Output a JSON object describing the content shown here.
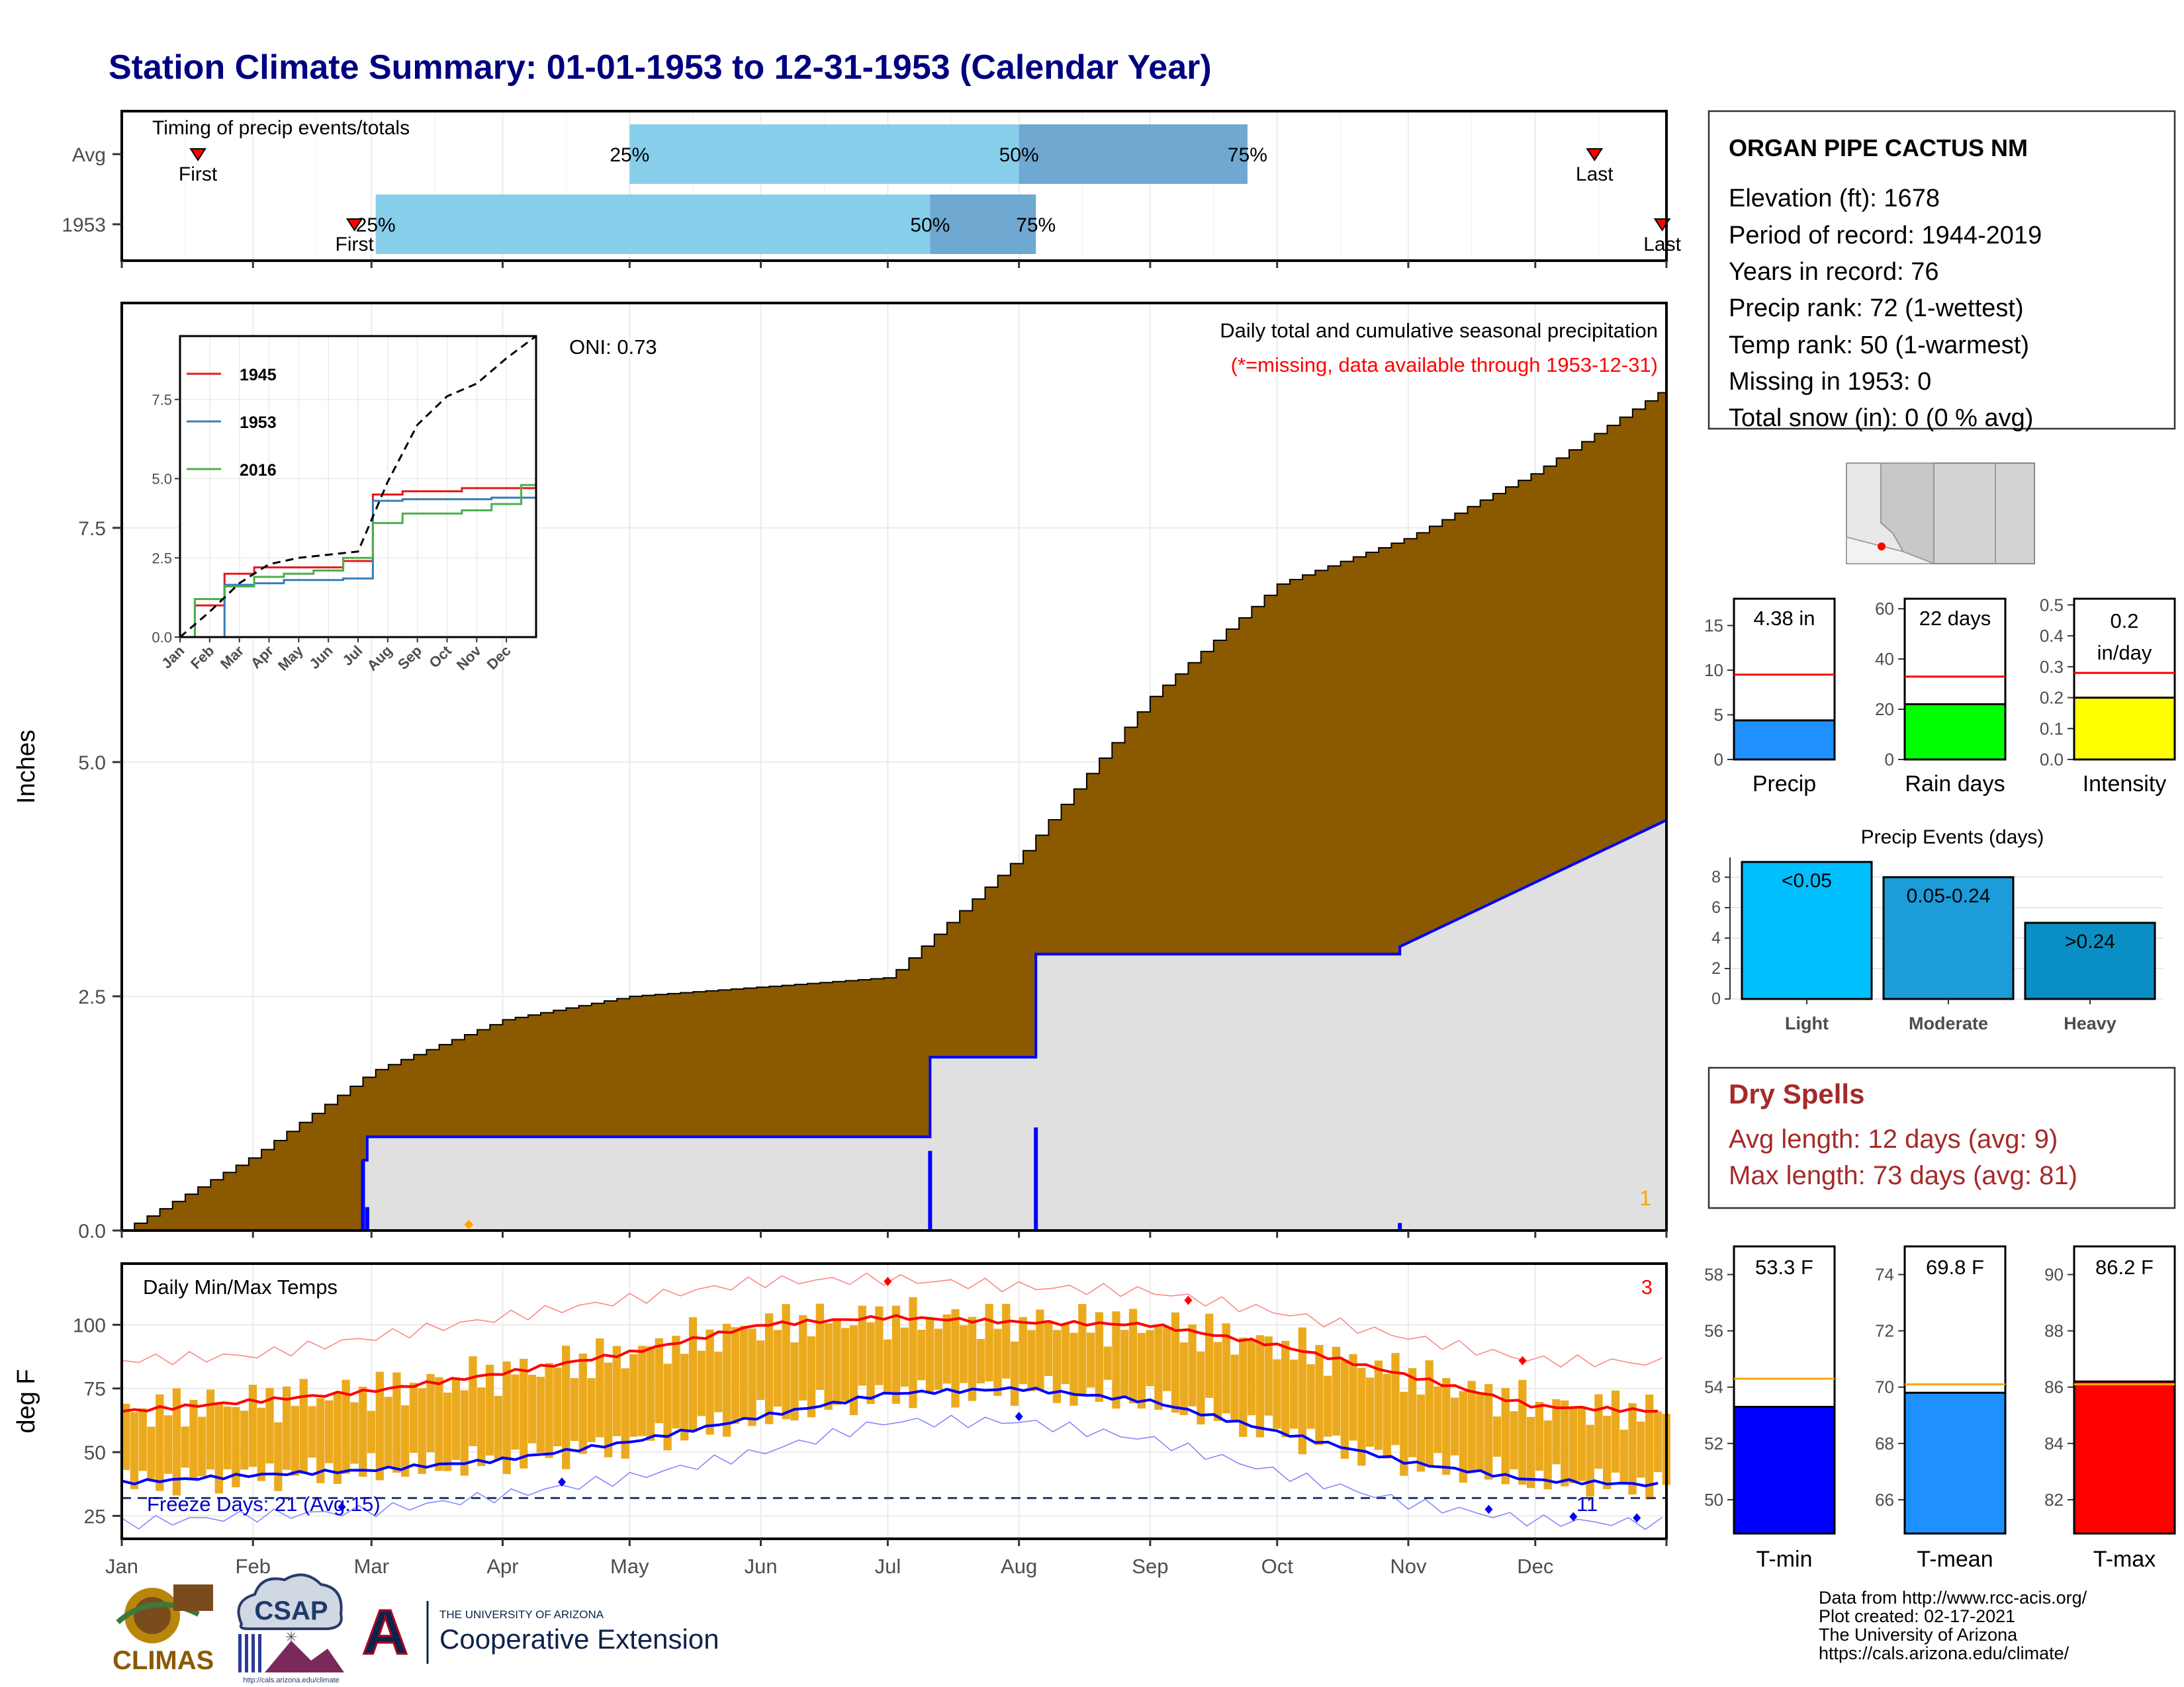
{
  "title": "Station Climate Summary: 01-01-1953 to 12-31-1953 (Calendar Year)",
  "colors": {
    "title": "#000080",
    "precip_fill": "#8B5A00",
    "obs_fill": "#E0E0E0",
    "obs_line": "#0000FF",
    "light_blue": "#87CEEB",
    "mid_blue": "#6FA8D0",
    "bar_orange": "#EBAA1E",
    "red": "#FF0000",
    "blue": "#0000FF",
    "dry_spell": "#A52A2A"
  },
  "months": [
    "Jan",
    "Feb",
    "Mar",
    "Apr",
    "May",
    "Jun",
    "Jul",
    "Aug",
    "Sep",
    "Oct",
    "Nov",
    "Dec"
  ],
  "timing_panel": {
    "title": "Timing of precip events/totals",
    "rows": [
      {
        "label": "Avg",
        "first_label": "First",
        "last_label": "Last",
        "pct_labels": [
          "25%",
          "50%",
          "75%"
        ]
      },
      {
        "label": "1953",
        "first_label": "First",
        "last_label": "Last",
        "pct_labels": [
          "25%",
          "50%",
          "75%"
        ]
      }
    ]
  },
  "precip_panel": {
    "ylabel": "Inches",
    "yticks": [
      "0.0",
      "2.5",
      "5.0",
      "7.5"
    ],
    "caption1": "Daily total and cumulative seasonal precipitation",
    "caption2": "(*=missing, data available through 1953-12-31)",
    "oni": "ONI: 0.73",
    "missing_count": "1"
  },
  "inset": {
    "yticks": [
      "0.0",
      "2.5",
      "5.0",
      "7.5"
    ],
    "xticks": [
      "Jan",
      "Feb",
      "Mar",
      "Apr",
      "May",
      "Jun",
      "Jul",
      "Aug",
      "Sep",
      "Oct",
      "Nov",
      "Dec"
    ],
    "legend": [
      "1945",
      "1953",
      "2016"
    ]
  },
  "temp_panel": {
    "ylabel": "deg F",
    "title": "Daily Min/Max Temps",
    "freeze": "Freeze Days: 21 (Avg:15)",
    "missing_count": "3",
    "yticks": [
      "25",
      "50",
      "75",
      "100"
    ],
    "count_label": "11"
  },
  "station": {
    "name": "ORGAN PIPE CACTUS NM",
    "lines": [
      "Elevation (ft): 1678",
      "Period of record: 1944-2019",
      "Years in record: 76",
      "Precip rank: 72 (1-wettest)",
      "Temp rank: 50 (1-warmest)",
      "Missing in 1953: 0",
      "Total snow (in): 0 (0 % avg)"
    ]
  },
  "mini_bars": [
    {
      "label": "Precip",
      "value_text": "4.38 in",
      "value": 4.38,
      "avg": 9.5,
      "ymax": 18,
      "yticks": [
        "0",
        "5",
        "10",
        "15"
      ],
      "ytick_vals": [
        0,
        5,
        10,
        15
      ],
      "color": "#1E90FF"
    },
    {
      "label": "Rain days",
      "value_text": "22 days",
      "value": 22,
      "avg": 33,
      "ymax": 64,
      "yticks": [
        "0",
        "20",
        "40",
        "60"
      ],
      "ytick_vals": [
        0,
        20,
        40,
        60
      ],
      "color": "#00FF00"
    },
    {
      "label": "Intensity",
      "value_text": "0.2 in/day",
      "value_line1": "0.2",
      "value_line2": "in/day",
      "value": 0.2,
      "avg": 0.28,
      "ymax": 0.52,
      "yticks": [
        "0.0",
        "0.1",
        "0.2",
        "0.3",
        "0.4",
        "0.5"
      ],
      "ytick_vals": [
        0,
        0.1,
        0.2,
        0.3,
        0.4,
        0.5
      ],
      "color": "#FFFF00"
    }
  ],
  "precip_events": {
    "title": "Precip Events (days)",
    "yticks": [
      "0",
      "2",
      "4",
      "6",
      "8"
    ],
    "bars": [
      {
        "label": "Light",
        "range": "<0.05",
        "value": 9,
        "color": "#00BFFF"
      },
      {
        "label": "Moderate",
        "range": "0.05-0.24",
        "value": 8,
        "color": "#1C9CD9"
      },
      {
        "label": "Heavy",
        "range": ">0.24",
        "value": 5,
        "color": "#0A8FC4"
      }
    ]
  },
  "dry_spells": {
    "title": "Dry Spells",
    "avg": "Avg length: 12 days (avg: 9)",
    "max": "Max length: 73 days (avg: 81)"
  },
  "temp_bars": [
    {
      "label": "T-min",
      "value_text": "53.3 F",
      "value": 53.3,
      "avg": 54.3,
      "ymin": 48.8,
      "ymax": 59,
      "yticks": [
        "50",
        "52",
        "54",
        "56",
        "58"
      ],
      "ytick_vals": [
        50,
        52,
        54,
        56,
        58
      ],
      "color": "#0000FF"
    },
    {
      "label": "T-mean",
      "value_text": "69.8 F",
      "value": 69.8,
      "avg": 70.1,
      "ymin": 64.8,
      "ymax": 75,
      "yticks": [
        "66",
        "68",
        "70",
        "72",
        "74"
      ],
      "ytick_vals": [
        66,
        68,
        70,
        72,
        74
      ],
      "color": "#1E90FF"
    },
    {
      "label": "T-max",
      "value_text": "86.2 F",
      "value": 86.2,
      "avg": 86.1,
      "ymin": 80.8,
      "ymax": 91,
      "yticks": [
        "82",
        "84",
        "86",
        "88",
        "90"
      ],
      "ytick_vals": [
        82,
        84,
        86,
        88,
        90
      ],
      "color": "#FF0000"
    }
  ],
  "credits": [
    "Data from http://www.rcc-acis.org/",
    "Plot created: 02-17-2021",
    "The University of Arizona",
    "https://cals.arizona.edu/climate/"
  ],
  "logos": {
    "climas": "CLIMAS",
    "csap": "CSAP",
    "csap_url": "http://cals.arizona.edu/climate",
    "ua_line1": "THE UNIVERSITY OF ARIZONA",
    "ua_line2": "Cooperative Extension",
    "ua_letter": "A"
  },
  "chart_data": [
    {
      "type": "bar",
      "title": "Timing of precip events/totals",
      "series": [
        {
          "name": "Avg",
          "first": "Jan 19",
          "p25": "May 1",
          "p50": "Aug 1",
          "p75": "Sep 24",
          "last": "Dec 15"
        },
        {
          "name": "1953",
          "first": "Feb 25",
          "p25": "Mar 2",
          "p50": "Jul 11",
          "p75": "Aug 5",
          "last": "Dec 31"
        }
      ]
    },
    {
      "type": "area",
      "title": "Daily total and cumulative seasonal precipitation",
      "ylabel": "Inches",
      "ylim": [
        0,
        9.9
      ],
      "x": [
        "Jan 1",
        "Feb 1",
        "Mar 1",
        "Apr 1",
        "May 1",
        "Jun 1",
        "Jul 1",
        "Aug 1",
        "Sep 1",
        "Oct 1",
        "Nov 1",
        "Dec 1",
        "Dec 31"
      ],
      "series": [
        {
          "name": "avg cumulative",
          "values": [
            0,
            0.8,
            1.7,
            2.25,
            2.5,
            2.6,
            2.7,
            4.0,
            5.7,
            6.9,
            7.4,
            8.1,
            9.0
          ]
        },
        {
          "name": "1953 cumulative",
          "values": [
            0,
            0,
            1.65,
            1.68,
            1.78,
            1.78,
            1.82,
            2.92,
            4.2,
            4.2,
            4.32,
            4.35,
            4.38
          ]
        }
      ],
      "daily_events": [
        {
          "date": "Feb 27",
          "value": 0.75
        },
        {
          "date": "Feb 28",
          "value": 0.25
        },
        {
          "date": "Jul 11",
          "value": 0.85
        },
        {
          "date": "Aug 5",
          "value": 1.1
        },
        {
          "date": "Oct 30",
          "value": 0.08
        }
      ]
    },
    {
      "type": "line",
      "title": "inset cumulative precipitation",
      "legend": [
        "1945",
        "1953",
        "2016"
      ],
      "ylim": [
        0,
        9.5
      ],
      "x": [
        "Jan",
        "Feb",
        "Mar",
        "Apr",
        "May",
        "Jun",
        "Jul",
        "Aug",
        "Sep",
        "Oct",
        "Nov",
        "Dec",
        "end"
      ],
      "series": [
        {
          "name": "1945",
          "values": [
            0,
            1.0,
            2.0,
            2.2,
            2.2,
            2.2,
            2.4,
            4.5,
            4.6,
            4.6,
            4.7,
            4.7,
            4.7
          ]
        },
        {
          "name": "1953",
          "values": [
            0,
            0,
            1.65,
            1.7,
            1.8,
            1.8,
            1.85,
            4.3,
            4.35,
            4.35,
            4.35,
            4.4,
            4.4
          ]
        },
        {
          "name": "2016",
          "values": [
            0,
            1.2,
            1.6,
            1.9,
            2.0,
            2.1,
            2.5,
            3.6,
            3.9,
            3.9,
            4.0,
            4.2,
            4.8
          ]
        },
        {
          "name": "avg",
          "values": [
            0,
            0.8,
            1.7,
            2.3,
            2.5,
            2.6,
            2.7,
            4.9,
            6.7,
            7.6,
            8.0,
            8.8,
            9.5
          ]
        }
      ]
    },
    {
      "type": "bar",
      "title": "Daily Min/Max Temps",
      "ylabel": "deg F",
      "ylim": [
        16,
        124
      ],
      "x": [
        "Jan",
        "Feb",
        "Mar",
        "Apr",
        "May",
        "Jun",
        "Jul",
        "Aug",
        "Sep",
        "Oct",
        "Nov",
        "Dec",
        "end"
      ],
      "series": [
        {
          "name": "avg max",
          "values": [
            66,
            70,
            74,
            81,
            89,
            100,
            103,
            101,
            100,
            92,
            80,
            68,
            66
          ]
        },
        {
          "name": "avg min",
          "values": [
            38,
            41,
            43,
            47,
            54,
            64,
            73,
            75,
            70,
            58,
            46,
            39,
            37
          ]
        },
        {
          "name": "record max",
          "values": [
            86,
            88,
            95,
            103,
            110,
            117,
            118,
            115,
            113,
            105,
            95,
            86,
            85
          ]
        },
        {
          "name": "record min",
          "values": [
            22,
            25,
            27,
            33,
            40,
            50,
            62,
            62,
            55,
            42,
            30,
            23,
            22
          ]
        }
      ]
    },
    {
      "type": "bar",
      "title": "Precip / Rain days / Intensity",
      "categories": [
        "Precip",
        "Rain days",
        "Intensity"
      ],
      "values": [
        4.38,
        22,
        0.2
      ]
    },
    {
      "type": "bar",
      "title": "Precip Events (days)",
      "categories": [
        "Light",
        "Moderate",
        "Heavy"
      ],
      "values": [
        9,
        8,
        5
      ]
    },
    {
      "type": "bar",
      "title": "Temperature",
      "categories": [
        "T-min",
        "T-mean",
        "T-max"
      ],
      "values": [
        53.3,
        69.8,
        86.2
      ]
    }
  ]
}
